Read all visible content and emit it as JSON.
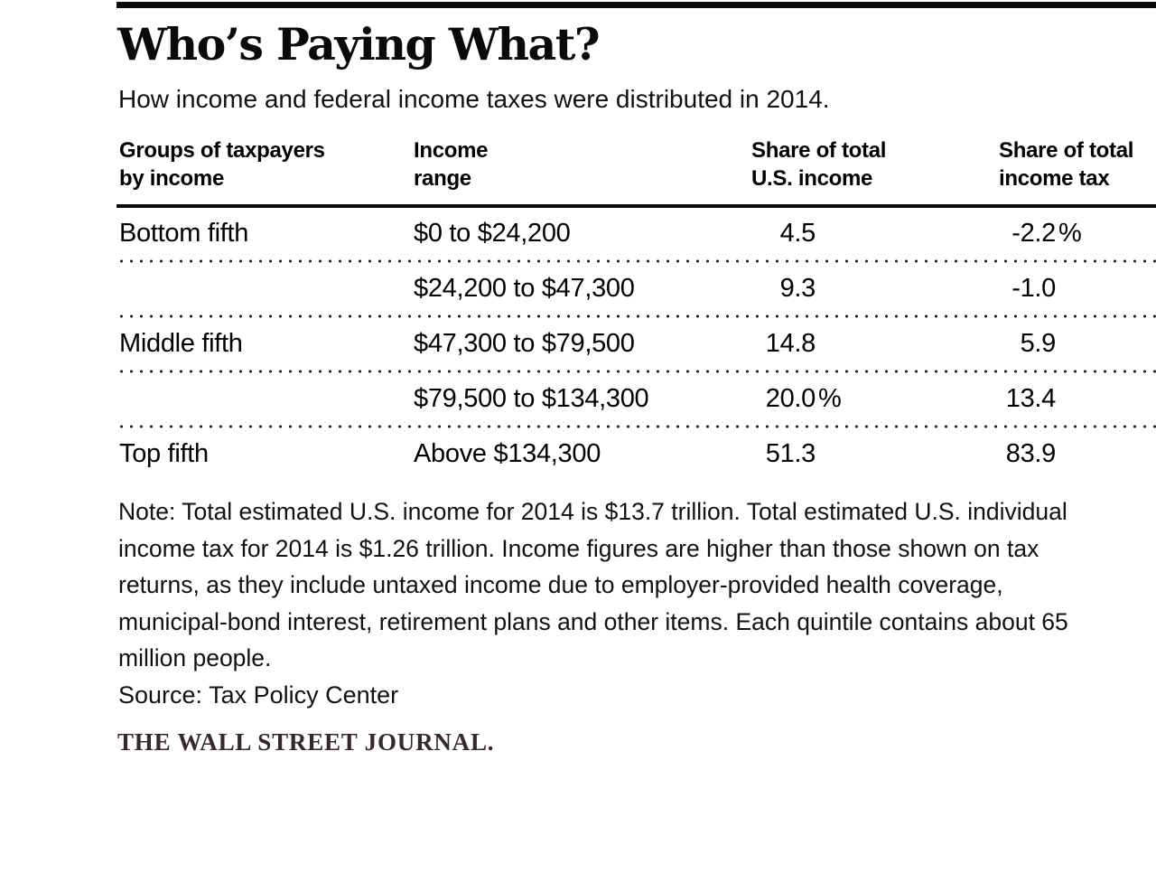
{
  "header": {
    "title": "Who’s Paying What?",
    "subtitle": "How income and federal income taxes were distributed in 2014."
  },
  "table": {
    "columns": [
      {
        "line1": "Groups of taxpayers",
        "line2": "by income"
      },
      {
        "line1": "Income",
        "line2": "range"
      },
      {
        "line1": "Share of total",
        "line2": "U.S. income"
      },
      {
        "line1": "Share of total",
        "line2": "income tax"
      }
    ],
    "rows": [
      {
        "group": "Bottom fifth",
        "range": "$0 to $24,200",
        "income_value": "4.5",
        "income_suffix": "",
        "tax_value": "-2.2",
        "tax_suffix": "%"
      },
      {
        "group": "",
        "range": "$24,200 to $47,300",
        "income_value": "9.3",
        "income_suffix": "",
        "tax_value": "-1.0",
        "tax_suffix": ""
      },
      {
        "group": "Middle fifth",
        "range": "$47,300 to $79,500",
        "income_value": "14.8",
        "income_suffix": "",
        "tax_value": "5.9",
        "tax_suffix": ""
      },
      {
        "group": "",
        "range": "$79,500 to $134,300",
        "income_value": "20.0",
        "income_suffix": "%",
        "tax_value": "13.4",
        "tax_suffix": ""
      },
      {
        "group": "Top fifth",
        "range": "Above $134,300",
        "income_value": "51.3",
        "income_suffix": "",
        "tax_value": "83.9",
        "tax_suffix": ""
      }
    ]
  },
  "footer": {
    "note_lines": [
      "Note: Total estimated U.S. income for 2014 is $13.7 trillion. Total estimated U.S. individual",
      "income tax for 2014 is $1.26 trillion. Income figures are higher than those shown on tax",
      "returns, as they include untaxed income due to employer-provided health coverage,",
      "municipal-bond interest, retirement plans and other items. Each quintile contains about 65",
      "million people."
    ],
    "source": "Source: Tax Policy Center",
    "brand": "THE WALL STREET JOURNAL."
  },
  "colors": {
    "rule": "#0a0a0a",
    "text": "#000000",
    "brand_text": "#342a2e"
  },
  "chart_data": {
    "type": "table",
    "title": "Who's Paying What?",
    "subtitle": "How income and federal income taxes were distributed in 2014.",
    "columns": [
      "Groups of taxpayers by income",
      "Income range",
      "Share of total U.S. income",
      "Share of total income tax"
    ],
    "units": "percent",
    "rows": [
      [
        "Bottom fifth",
        "$0 to $24,200",
        4.5,
        -2.2
      ],
      [
        "",
        "$24,200 to $47,300",
        9.3,
        -1.0
      ],
      [
        "Middle fifth",
        "$47,300 to $79,500",
        14.8,
        5.9
      ],
      [
        "",
        "$79,500 to $134,300",
        20.0,
        13.4
      ],
      [
        "Top fifth",
        "Above $134,300",
        51.3,
        83.9
      ]
    ],
    "note": "Total estimated U.S. income for 2014 is $13.7 trillion. Total estimated U.S. individual income tax for 2014 is $1.26 trillion. Income figures are higher than those shown on tax returns, as they include untaxed income due to employer-provided health coverage, municipal-bond interest, retirement plans and other items. Each quintile contains about 65 million people.",
    "source": "Tax Policy Center"
  }
}
